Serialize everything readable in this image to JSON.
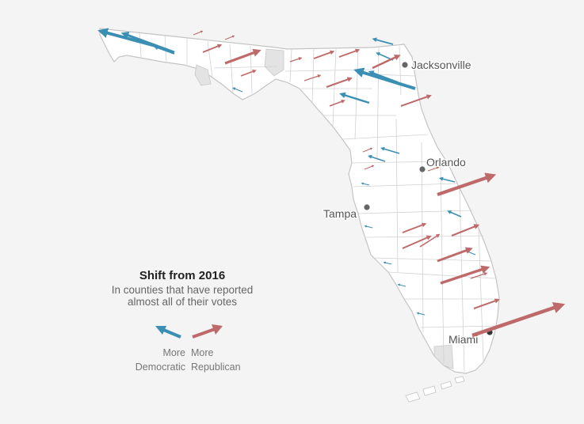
{
  "legend": {
    "title": "Shift from 2016",
    "subtitle_line1": "In counties that have reported",
    "subtitle_line2": "almost all of their votes",
    "dem_line1": "More",
    "dem_line2": "Democratic",
    "rep_line1": "More",
    "rep_line2": "Republican"
  },
  "cities": [
    {
      "name": "Jacksonville"
    },
    {
      "name": "Orlando"
    },
    {
      "name": "Tampa"
    },
    {
      "name": "Miami"
    }
  ],
  "colors": {
    "democratic": "#3b8fb4",
    "republican": "#bf6a6a",
    "land": "#ffffff",
    "border": "#c9c9c9",
    "no_data": "#e3e3e3",
    "background": "#f4f4f4"
  }
}
